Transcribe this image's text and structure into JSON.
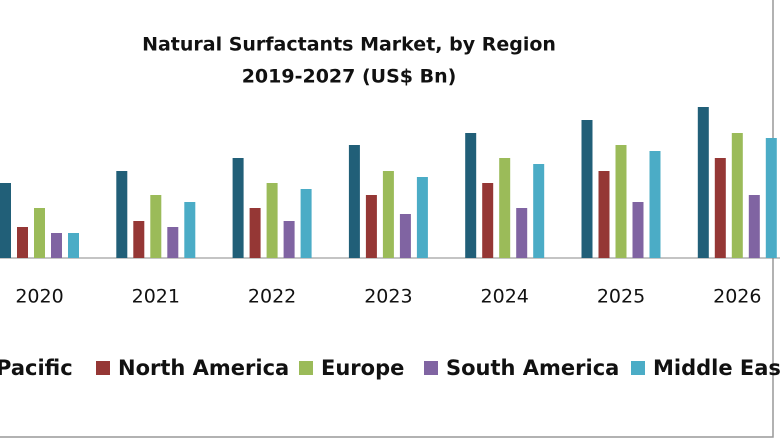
{
  "chart_data": {
    "type": "bar",
    "title": "Natural Surfactants Market, by Region",
    "subtitle": "2019-2027 (US$ Bn)",
    "categories": [
      "2020",
      "2021",
      "2022",
      "2023",
      "2024",
      "2025",
      "2026"
    ],
    "series": [
      {
        "name": "Pacific",
        "color": "#215f78",
        "values": [
          75,
          87,
          100,
          113,
          125,
          138,
          151
        ]
      },
      {
        "name": "North America",
        "color": "#953735",
        "values": [
          31,
          37,
          50,
          63,
          75,
          87,
          100
        ]
      },
      {
        "name": "Europe",
        "color": "#9bbb59",
        "values": [
          50,
          63,
          75,
          87,
          100,
          113,
          125
        ]
      },
      {
        "name": "South America",
        "color": "#8064a2",
        "values": [
          25,
          31,
          37,
          44,
          50,
          56,
          63
        ]
      },
      {
        "name": "Middle Eas",
        "color": "#4bacc6",
        "values": [
          25,
          56,
          69,
          81,
          94,
          107,
          120
        ]
      }
    ]
  }
}
